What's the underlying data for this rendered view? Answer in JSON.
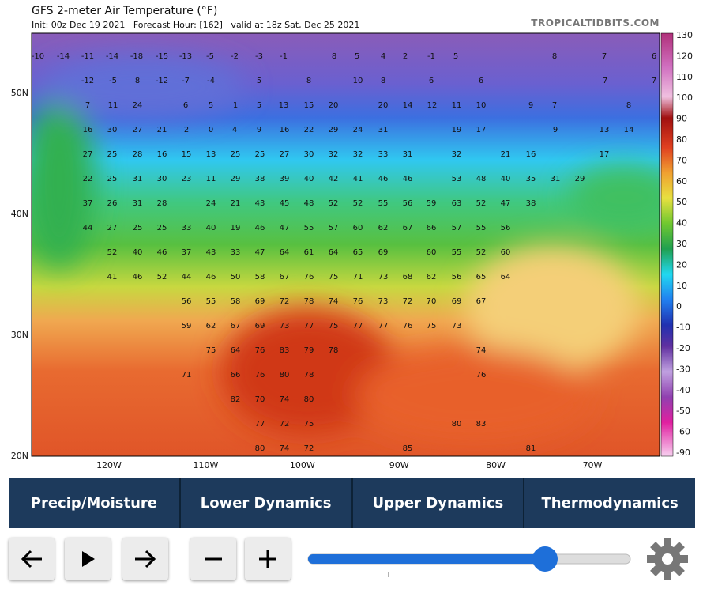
{
  "header": {
    "title": "GFS 2-meter Air Temperature (°F)",
    "subtitle": "Init: 00z Dec 19 2021   Forecast Hour: [162]   valid at 18z Sat, Dec 25 2021",
    "site": "TROPICALTIDBITS.COM"
  },
  "map": {
    "colorbar_labels": [
      "130",
      "120",
      "110",
      "100",
      "90",
      "80",
      "70",
      "60",
      "50",
      "40",
      "30",
      "20",
      "10",
      "0",
      "-10",
      "-20",
      "-30",
      "-40",
      "-50",
      "-60",
      "-90"
    ],
    "lat_labels": [
      "50N",
      "40N",
      "30N",
      "20N"
    ],
    "lon_labels": [
      "120W",
      "110W",
      "100W",
      "90W",
      "80W",
      "70W"
    ],
    "station_values": [
      [
        -10,
        -14,
        -11,
        -14,
        -18,
        -15,
        -13,
        -5,
        -2,
        -3,
        -1,
        8,
        5,
        4,
        2,
        -1,
        5,
        8,
        7,
        6
      ],
      [
        -12,
        -5,
        8,
        -12,
        -7,
        -4,
        5,
        8,
        10,
        8,
        6,
        6,
        7,
        7
      ],
      [
        7,
        11,
        24,
        6,
        5,
        1,
        5,
        13,
        15,
        20,
        20,
        14,
        12,
        11,
        10,
        9,
        7,
        8
      ],
      [
        16,
        30,
        27,
        21,
        2,
        0,
        4,
        9,
        16,
        22,
        29,
        24,
        31,
        19,
        17,
        9,
        13,
        14
      ],
      [
        27,
        25,
        28,
        16,
        15,
        13,
        25,
        25,
        27,
        30,
        32,
        32,
        33,
        31,
        32,
        21,
        16,
        17
      ],
      [
        22,
        25,
        31,
        30,
        23,
        11,
        29,
        38,
        39,
        40,
        42,
        41,
        46,
        46,
        53,
        48,
        40,
        35,
        31,
        29
      ],
      [
        37,
        26,
        31,
        28,
        24,
        21,
        43,
        45,
        48,
        52,
        52,
        55,
        56,
        59,
        63,
        52,
        47,
        38
      ],
      [
        44,
        27,
        25,
        25,
        33,
        40,
        19,
        46,
        47,
        55,
        57,
        60,
        62,
        67,
        66,
        57,
        55,
        56
      ],
      [
        52,
        40,
        46,
        37,
        43,
        33,
        47,
        64,
        61,
        64,
        65,
        69,
        60,
        55,
        52,
        60
      ],
      [
        41,
        46,
        52,
        44,
        46,
        50,
        58,
        67,
        76,
        75,
        71,
        73,
        68,
        62,
        56,
        65,
        64
      ],
      [
        56,
        55,
        58,
        69,
        72,
        78,
        74,
        76,
        73,
        72,
        70,
        69,
        67
      ],
      [
        59,
        62,
        67,
        69,
        73,
        77,
        75,
        77,
        77,
        76,
        75,
        73
      ],
      [
        75,
        64,
        76,
        83,
        79,
        78,
        74
      ],
      [
        71,
        66,
        76,
        80,
        78,
        76
      ],
      [
        82,
        70,
        74,
        80
      ],
      [
        77,
        72,
        75,
        80,
        83
      ],
      [
        80,
        74,
        72,
        85,
        81
      ]
    ]
  },
  "tabs": [
    "Precip/Moisture",
    "Lower Dynamics",
    "Upper Dynamics",
    "Thermodynamics"
  ]
}
